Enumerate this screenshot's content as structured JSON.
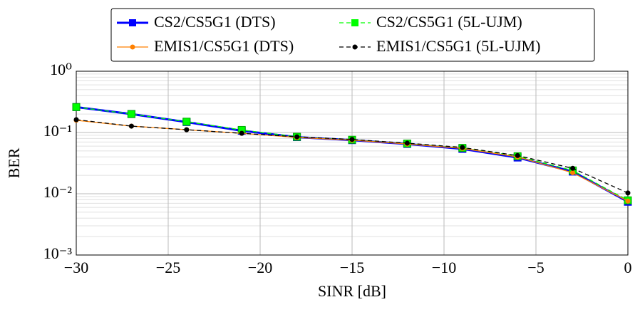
{
  "chart_data": {
    "type": "line",
    "x_label": "SINR [dB]",
    "y_label": "BER",
    "x": [
      -30,
      -27,
      -24,
      -21,
      -18,
      -15,
      -12,
      -9,
      -6,
      -3,
      0
    ],
    "series": [
      {
        "name": "CS2/CS5G1 (DTS)",
        "color": "#0000ff",
        "linestyle": "solid",
        "marker": "square",
        "values": [
          0.26,
          0.2,
          0.148,
          0.107,
          0.084,
          0.075,
          0.065,
          0.054,
          0.039,
          0.023,
          0.0074
        ]
      },
      {
        "name": "CS2/CS5G1 (5L-UJM)",
        "color": "#00ff00",
        "linestyle": "dashed",
        "marker": "square",
        "values": [
          0.26,
          0.2,
          0.15,
          0.11,
          0.085,
          0.076,
          0.066,
          0.056,
          0.041,
          0.024,
          0.0078
        ]
      },
      {
        "name": "EMIS1/CS5G1 (DTS)",
        "color": "#ff8000",
        "linestyle": "solid",
        "marker": "circle",
        "values": [
          0.158,
          0.127,
          0.111,
          0.097,
          0.083,
          0.075,
          0.065,
          0.055,
          0.04,
          0.022,
          0.0076
        ]
      },
      {
        "name": "EMIS1/CS5G1 (5L-UJM)",
        "color": "#000000",
        "linestyle": "dashed",
        "marker": "circle",
        "values": [
          0.162,
          0.127,
          0.111,
          0.097,
          0.085,
          0.077,
          0.067,
          0.057,
          0.042,
          0.026,
          0.0103
        ]
      }
    ],
    "xlim": [
      -30,
      0
    ],
    "xticks": [
      {
        "value": -30,
        "label": "−30"
      },
      {
        "value": -25,
        "label": "−25"
      },
      {
        "value": -20,
        "label": "−20"
      },
      {
        "value": -15,
        "label": "−15"
      },
      {
        "value": -10,
        "label": "−10"
      },
      {
        "value": -5,
        "label": "−5"
      },
      0
    ],
    "ylim": [
      0.001,
      1
    ],
    "yticks": [
      {
        "value": 0.001,
        "label": "10⁻³"
      },
      {
        "value": 0.01,
        "label": "10⁻²"
      },
      {
        "value": 0.1,
        "label": "10⁻¹"
      },
      {
        "value": 1,
        "label": "10⁰"
      }
    ],
    "y_scale": "log",
    "grid": true,
    "legend": "top"
  }
}
